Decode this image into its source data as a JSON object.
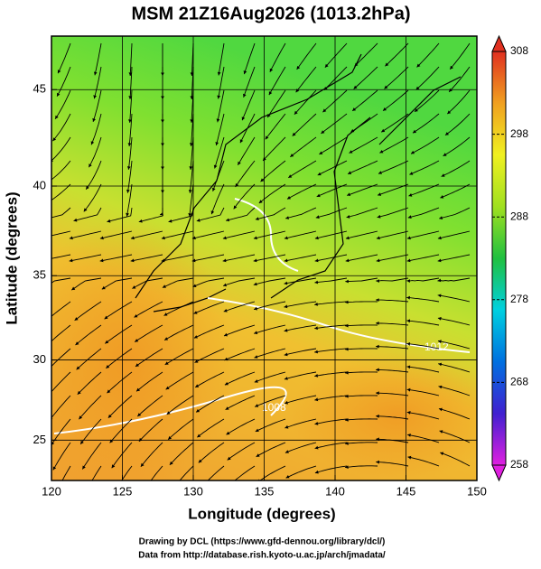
{
  "chart_data": {
    "type": "map",
    "title": "MSM 21Z16Aug2026 (1013.2hPa)",
    "x_label": "Longitude (degrees)",
    "y_label": "Latitude  (degrees)",
    "xlim": [
      120,
      150
    ],
    "xticks": [
      120,
      125,
      130,
      135,
      140,
      145,
      150
    ],
    "ylim": [
      22.4,
      47.6
    ],
    "yticks": [
      25,
      30,
      35,
      40,
      45
    ],
    "projection": "mercator",
    "grid": true,
    "contour_labels": [
      "1008",
      "1012"
    ],
    "colorbar": {
      "range": [
        258,
        308
      ],
      "ticks": [
        258,
        268,
        278,
        288,
        298,
        308
      ],
      "colors": [
        "#e020e0",
        "#4020d0",
        "#0070e0",
        "#00d0e0",
        "#20c040",
        "#a0e020",
        "#f0f020",
        "#f0a020",
        "#e03020"
      ]
    },
    "footer": [
      "Drawing by DCL (https://www.gfd-dennou.org/library/dcl/)",
      "Data from http://database.rish.kyoto-u.ac.jp/arch/jmadata/"
    ]
  }
}
